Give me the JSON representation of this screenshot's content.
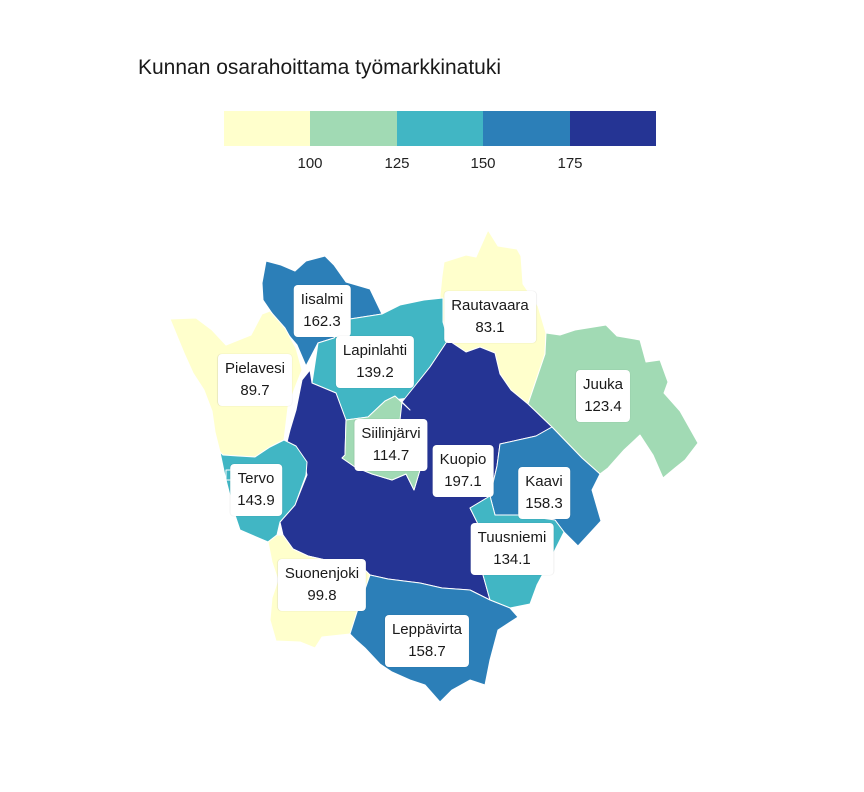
{
  "title": "Kunnan osarahoittama työmarkkinatuki",
  "legend": {
    "colors": [
      "#ffffcc",
      "#a1dab4",
      "#41b6c4",
      "#2c7fb8",
      "#253494"
    ],
    "breaks": [
      "100",
      "125",
      "150",
      "175"
    ]
  },
  "municipalities": {
    "iisalmi": {
      "name": "Iisalmi",
      "value": "162.3"
    },
    "rautavaara": {
      "name": "Rautavaara",
      "value": "83.1"
    },
    "lapinlahti": {
      "name": "Lapinlahti",
      "value": "139.2"
    },
    "pielavesi": {
      "name": "Pielavesi",
      "value": "89.7"
    },
    "juuka": {
      "name": "Juuka",
      "value": "123.4"
    },
    "siilinjarvi": {
      "name": "Siilinjärvi",
      "value": "114.7"
    },
    "kuopio": {
      "name": "Kuopio",
      "value": "197.1"
    },
    "tervo": {
      "name": "Tervo",
      "value": "143.9"
    },
    "kaavi": {
      "name": "Kaavi",
      "value": "158.3"
    },
    "tuusniemi": {
      "name": "Tuusniemi",
      "value": "134.1"
    },
    "suonenjoki": {
      "name": "Suonenjoki",
      "value": "99.8"
    },
    "leppavirta": {
      "name": "Leppävirta",
      "value": "158.7"
    }
  }
}
